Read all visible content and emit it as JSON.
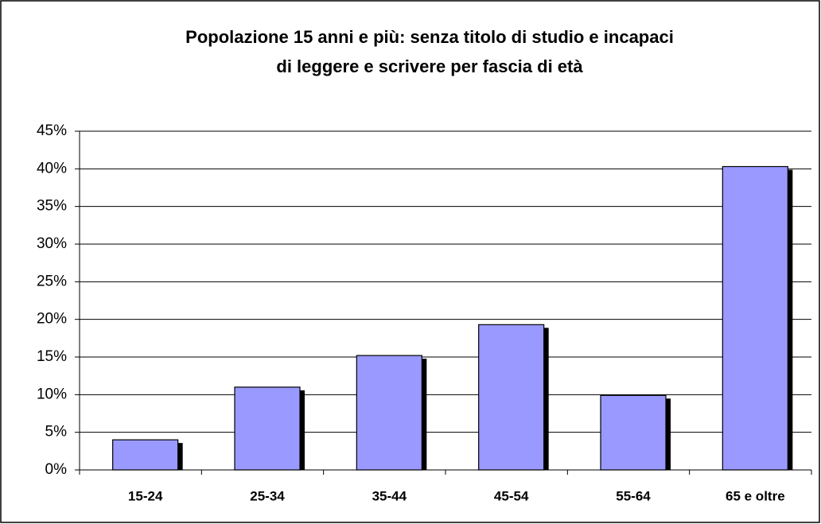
{
  "chart_data": {
    "type": "bar",
    "title": [
      "Popolazione 15 anni e più: senza titolo di studio e incapaci",
      "di leggere e scrivere per fascia di età"
    ],
    "categories": [
      "15-24",
      "25-34",
      "35-44",
      "45-54",
      "55-64",
      "65 e oltre"
    ],
    "values": [
      4.0,
      11.0,
      15.2,
      19.3,
      9.9,
      40.3
    ],
    "color": "#9999ff",
    "ylim": [
      0,
      45
    ],
    "yticks": [
      {
        "value": 0,
        "label": "0%"
      },
      {
        "value": 5,
        "label": "5%"
      },
      {
        "value": 10,
        "label": "10%"
      },
      {
        "value": 15,
        "label": "15%"
      },
      {
        "value": 20,
        "label": "20%"
      },
      {
        "value": 25,
        "label": "25%"
      },
      {
        "value": 30,
        "label": "30%"
      },
      {
        "value": 35,
        "label": "35%"
      },
      {
        "value": 40,
        "label": "40%"
      },
      {
        "value": 45,
        "label": "45%"
      }
    ],
    "grid": true
  }
}
